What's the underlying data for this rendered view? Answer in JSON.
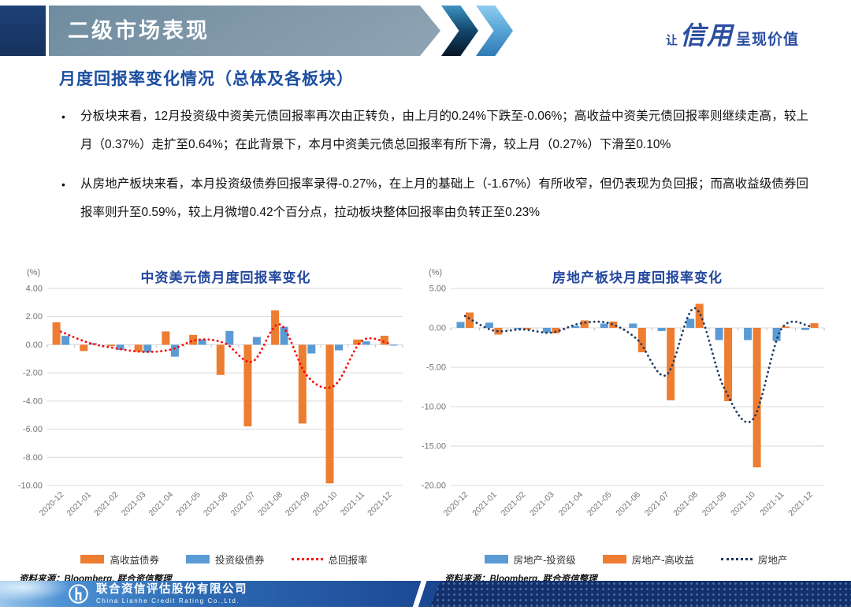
{
  "header": {
    "banner_title": "二级市场表现",
    "brand": {
      "prefix": "让",
      "calligraphy": "信用",
      "suffix": "呈现价值"
    },
    "subtitle": "月度回报率变化情况（总体及各板块）"
  },
  "bullets": [
    "分板块来看，12月投资级中资美元债回报率再次由正转负，由上月的0.24%下跌至-0.06%；高收益中资美元债回报率则继续走高，较上月（0.37%）走扩至0.64%；在此背景下，本月中资美元债总回报率有所下滑，较上月（0.27%）下滑至0.10%",
    "从房地产板块来看，本月投资级债券回报率录得-0.27%，在上月的基础上（-1.67%）有所收窄，但仍表现为负回报；而高收益级债券回报率则升至0.59%，较上月微增0.42个百分点，拉动板块整体回报率由负转正至0.23%"
  ],
  "chart_data": [
    {
      "type": "bar",
      "title": "中资美元债月度回报率变化",
      "unit_label": "(%)",
      "categories": [
        "2020-12",
        "2021-01",
        "2021-02",
        "2021-03",
        "2021-04",
        "2021-05",
        "2021-06",
        "2021-07",
        "2021-08",
        "2021-09",
        "2021-10",
        "2021-11",
        "2021-12"
      ],
      "series": [
        {
          "name": "高收益债券",
          "type": "bar",
          "color": "#ED7D31",
          "values": [
            1.6,
            -0.45,
            -0.1,
            -0.5,
            0.95,
            0.7,
            -2.15,
            -5.8,
            2.45,
            -5.6,
            -9.85,
            0.37,
            0.64
          ]
        },
        {
          "name": "投资级债券",
          "type": "bar",
          "color": "#5B9BD5",
          "values": [
            0.63,
            0.12,
            -0.38,
            -0.55,
            -0.85,
            0.38,
            0.98,
            0.55,
            1.28,
            -0.62,
            -0.4,
            0.24,
            -0.06
          ]
        },
        {
          "name": "总回报率",
          "type": "dotted-line",
          "color": "#FF0000",
          "values": [
            0.93,
            0.15,
            -0.25,
            -0.5,
            -0.35,
            0.35,
            0.1,
            -1.2,
            1.45,
            -2.2,
            -2.9,
            0.27,
            0.1
          ]
        }
      ],
      "ylim": [
        -10,
        4
      ],
      "ytick_step": 2,
      "grid": true,
      "legend_position": "bottom"
    },
    {
      "type": "bar",
      "title": "房地产板块月度回报率变化",
      "unit_label": "(%)",
      "categories": [
        "2020-12",
        "2021-01",
        "2021-02",
        "2021-03",
        "2021-04",
        "2021-05",
        "2021-06",
        "2021-07",
        "2021-08",
        "2021-09",
        "2021-10",
        "2021-11",
        "2021-12"
      ],
      "series": [
        {
          "name": "房地产-投资级",
          "type": "bar",
          "color": "#5B9BD5",
          "values": [
            0.75,
            0.66,
            -0.15,
            -0.6,
            0.25,
            0.55,
            0.55,
            -0.4,
            1.15,
            -1.55,
            -1.55,
            -1.67,
            -0.27
          ]
        },
        {
          "name": "房地产-高收益",
          "type": "bar",
          "color": "#ED7D31",
          "values": [
            1.95,
            -0.85,
            -0.2,
            -0.7,
            0.95,
            0.8,
            -3.1,
            -9.2,
            3.05,
            -9.3,
            -17.7,
            0.17,
            0.59
          ]
        },
        {
          "name": "房地产",
          "type": "dotted-line",
          "color": "#1F3864",
          "values": [
            1.5,
            -0.35,
            -0.2,
            -0.6,
            0.55,
            0.6,
            -1.5,
            -6.0,
            2.5,
            -7.5,
            -11.7,
            -0.2,
            0.23
          ]
        }
      ],
      "ylim": [
        -20,
        5
      ],
      "ytick_step": 5,
      "grid": true,
      "legend_position": "bottom"
    }
  ],
  "sources": {
    "left": "资料来源：Bloomberg, 联合资信整理",
    "right": "资料来源：Bloomberg, 联合资信整理"
  },
  "footer": {
    "company_cn": "联合资信评估股份有限公司",
    "company_en": "China Lianhe Credit Rating Co.,Ltd."
  },
  "colors": {
    "high_yield_orange": "#ED7D31",
    "investment_grade_blue": "#5B9BD5",
    "total_return_red": "#FF0000",
    "property_total_navy": "#1F3864",
    "title_blue": "#1C4FA0",
    "banner_slate": "#7F97A8",
    "footer_navy": "#13306B"
  }
}
